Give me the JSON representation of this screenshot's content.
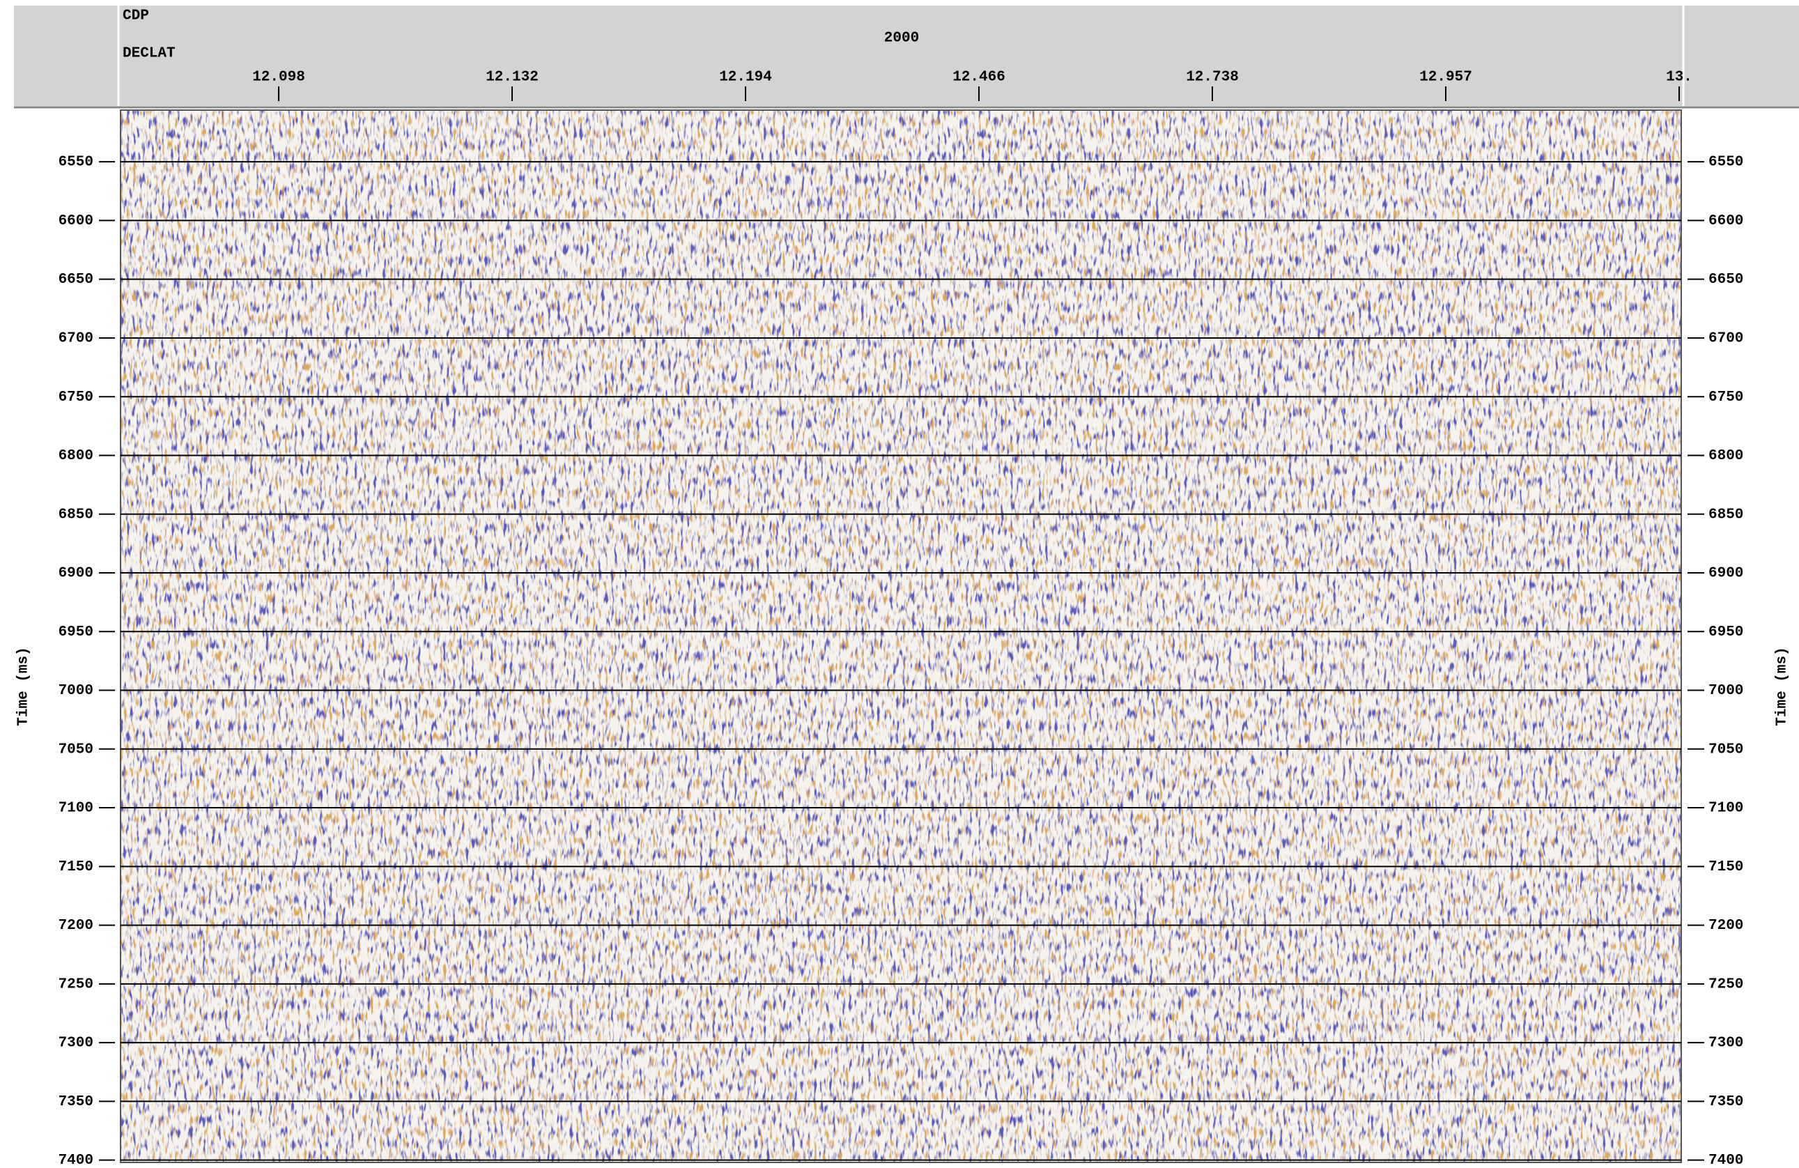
{
  "chart_data": {
    "type": "seismic",
    "header_labels": [
      "CDP",
      "DECLAT"
    ],
    "top_label": "2000",
    "categories": [
      "12.098",
      "12.132",
      "12.194",
      "12.466",
      "12.738",
      "12.957",
      "13."
    ],
    "ylabel": "Time (ms)",
    "ylim": [
      6506,
      7402
    ],
    "yticks": [
      6550,
      6600,
      6650,
      6700,
      6750,
      6800,
      6850,
      6900,
      6950,
      7000,
      7050,
      7100,
      7150,
      7200,
      7250,
      7300,
      7350,
      7400
    ],
    "grid": true
  }
}
